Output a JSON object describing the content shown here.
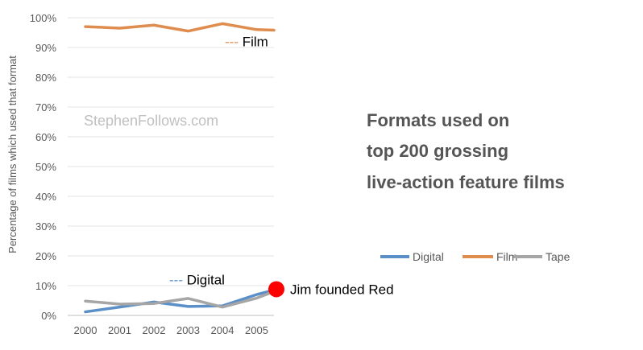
{
  "chart_data": {
    "type": "line",
    "title_lines": [
      "Formats used on",
      "top 200 grossing",
      "live-action feature films"
    ],
    "watermark": "StephenFollows.com",
    "ylabel": "Percentage of films which used that format",
    "x": [
      "2000",
      "2001",
      "2002",
      "2003",
      "2004",
      "2005"
    ],
    "yticks": [
      "0%",
      "10%",
      "20%",
      "30%",
      "40%",
      "50%",
      "60%",
      "70%",
      "80%",
      "90%",
      "100%"
    ],
    "ylim": [
      0,
      100
    ],
    "grid": true,
    "legend_position": "right",
    "series": [
      {
        "name": "Digital",
        "color": "#5b8fc7",
        "values": [
          1.2,
          2.8,
          4.5,
          3.0,
          3.2,
          7.0
        ],
        "end_value": 8.5
      },
      {
        "name": "Film",
        "color": "#df8c4f",
        "values": [
          97.0,
          96.5,
          97.5,
          95.5,
          98.0,
          96.0
        ],
        "end_value": 95.8
      },
      {
        "name": "Tape",
        "color": "#a6a6a6",
        "values": [
          4.8,
          3.8,
          4.0,
          5.7,
          2.8,
          5.8
        ],
        "end_value": 8.0
      }
    ],
    "line_labels": [
      {
        "text": "--- Film",
        "color": "#df8c4f",
        "value": 92.0
      },
      {
        "text": "--- Digital",
        "color": "#5b8fc7",
        "value": 12.0
      }
    ],
    "annotation": {
      "text": "Jim founded Red",
      "marker_color": "#ff0000",
      "value": 8.8
    }
  }
}
